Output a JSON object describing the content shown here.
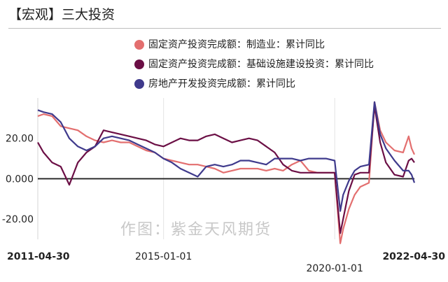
{
  "header": {
    "title": "【宏观】三大投资"
  },
  "watermark": "作图：紫金天风期货",
  "chart_data": {
    "type": "line",
    "x": [
      "2011-04-30",
      "2011-06-30",
      "2011-09-30",
      "2011-12-31",
      "2012-03-31",
      "2012-06-30",
      "2012-09-30",
      "2012-12-31",
      "2013-03-31",
      "2013-06-30",
      "2013-09-30",
      "2013-12-31",
      "2014-03-31",
      "2014-06-30",
      "2014-09-30",
      "2014-12-31",
      "2015-03-31",
      "2015-06-30",
      "2015-09-30",
      "2015-12-31",
      "2016-03-31",
      "2016-06-30",
      "2016-09-30",
      "2016-12-31",
      "2017-03-31",
      "2017-06-30",
      "2017-09-30",
      "2017-12-31",
      "2018-03-31",
      "2018-06-30",
      "2018-09-30",
      "2018-12-31",
      "2019-03-31",
      "2019-06-30",
      "2019-09-30",
      "2019-12-31",
      "2020-02-29",
      "2020-03-31",
      "2020-05-31",
      "2020-07-31",
      "2020-09-30",
      "2020-12-31",
      "2021-02-28",
      "2021-04-30",
      "2021-06-30",
      "2021-09-30",
      "2021-12-31",
      "2022-02-28",
      "2022-03-31",
      "2022-04-30"
    ],
    "x_ticks": [
      "2011-04-30",
      "2015-01-01",
      "2020-01-01",
      "2022-04-30"
    ],
    "y_ticks": [
      "20.00",
      "0.000",
      "-20.00"
    ],
    "ylim": [
      -30,
      40
    ],
    "zero_line": 0,
    "grid": "vertical at 2015-01-01 and 2020-01-01",
    "series": [
      {
        "name": "固定资产投资完成额：制造业：累计同比",
        "color": "#e36f6f",
        "values": [
          31,
          32,
          31,
          26,
          25,
          24,
          21,
          19,
          18,
          19,
          18,
          18,
          16,
          14,
          13,
          10,
          9,
          8,
          7,
          7,
          6,
          5,
          3,
          4,
          5,
          5,
          5,
          4,
          5,
          4,
          7,
          9,
          4,
          3,
          3,
          3,
          -32,
          -25,
          -15,
          -8,
          -4,
          -2,
          38,
          24,
          18,
          14,
          13,
          21,
          15,
          12
        ]
      },
      {
        "name": "固定资产投资完成额：基础设施建设投资：累计同比",
        "color": "#6b0f45",
        "values": [
          18,
          13,
          8,
          6,
          -3,
          8,
          13,
          16,
          24,
          23,
          22,
          21,
          20,
          19,
          17,
          16,
          18,
          20,
          19,
          19,
          21,
          22,
          20,
          18,
          19,
          20,
          19,
          16,
          13,
          7,
          4,
          3,
          3,
          3,
          3,
          3,
          -27,
          -20,
          -6,
          2,
          3,
          3,
          36,
          18,
          8,
          2,
          1,
          9,
          10,
          8
        ]
      },
      {
        "name": "房地产开发投资完成额：累计同比",
        "color": "#3f3a8c",
        "values": [
          34,
          33,
          32,
          28,
          20,
          16,
          14,
          16,
          20,
          21,
          20,
          19,
          17,
          15,
          13,
          10,
          8,
          5,
          3,
          1,
          6,
          7,
          6,
          7,
          9,
          9,
          8,
          7,
          10,
          10,
          10,
          9,
          10,
          10,
          10,
          9,
          -16,
          -8,
          -1,
          4,
          6,
          7,
          38,
          22,
          15,
          9,
          4,
          4,
          2,
          -2
        ]
      }
    ]
  }
}
